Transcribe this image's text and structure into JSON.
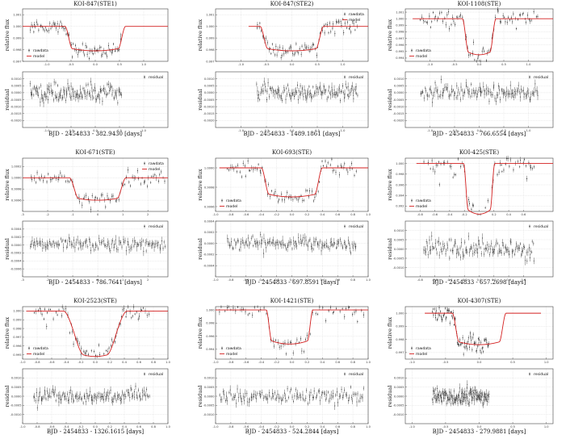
{
  "figure": {
    "layout": "3x3 grid of transit light-curve panels, each with a relative-flux plot above a residual plot",
    "colors": {
      "data": "#1a1a1a",
      "model": "#d42020",
      "grid": "#cfcfcf",
      "frame": "#444444"
    }
  },
  "chart_data": [
    {
      "type": "scatter",
      "title": "KOI-847(STE1)",
      "xlabel": "BJD - 2454833 - 382.9430 [days]",
      "ylabel_top": "relative flux",
      "ylabel_bottom": "residual",
      "xlim": [
        -1.5,
        1.5
      ],
      "xticks": [
        "-1.0",
        "-0.5",
        "0.0",
        "0.5",
        "1.0"
      ],
      "top": {
        "ylim": [
          0.997,
          1.0015
        ],
        "yticks": [
          "1.001",
          "1.000",
          "0.999",
          "0.998",
          "0.997"
        ],
        "legend": "lower-left",
        "legend_entries": [
          "rawdata",
          "model"
        ]
      },
      "bottom": {
        "ylim": [
          -0.0025,
          0.0015
        ],
        "yticks": [
          "0.0010",
          "0.0005",
          "0.0000",
          "-0.0005",
          "-0.0010",
          "-0.0015",
          "-0.0020"
        ],
        "legend": "upper-right",
        "legend_entries": [
          "residual"
        ]
      },
      "model": {
        "depth": 0.0021,
        "t_ingress": -0.55,
        "t_egress": 0.55,
        "edge": 0.15
      },
      "data_range": [
        -1.35,
        0.55
      ],
      "residual_scatter": 0.0006
    },
    {
      "type": "scatter",
      "title": "KOI-847(STE2)",
      "xlabel": "BJD - 2454833 - 1489.1861 [days]",
      "ylabel_top": "relative flux",
      "ylabel_bottom": "residual",
      "xlim": [
        -1.5,
        1.5
      ],
      "xticks": [
        "-1.0",
        "-0.5",
        "0.0",
        "0.5",
        "1.0"
      ],
      "top": {
        "ylim": [
          0.997,
          1.0015
        ],
        "yticks": [
          "1.001",
          "1.000",
          "0.999",
          "0.998",
          "0.997"
        ],
        "legend": "upper-right",
        "legend_entries": [
          "rawdata",
          "model"
        ]
      },
      "bottom": {
        "ylim": [
          -0.0025,
          0.0015
        ],
        "yticks": [
          "0.0010",
          "0.0005",
          "0.0000",
          "-0.0005",
          "-0.0010",
          "-0.0015",
          "-0.0020"
        ],
        "legend": "upper-right",
        "legend_entries": [
          "residual"
        ]
      },
      "model": {
        "depth": 0.0021,
        "t_ingress": -0.55,
        "t_egress": 0.55,
        "edge": 0.15
      },
      "data_range": [
        -0.7,
        1.3
      ],
      "residual_scatter": 0.0006
    },
    {
      "type": "scatter",
      "title": "KOI-1108(STE)",
      "xlabel": "BJD - 2454833 - 766.6554 [days]",
      "ylabel_top": "relative flux",
      "ylabel_bottom": "residual",
      "xlim": [
        -1.5,
        1.5
      ],
      "xticks": [
        "-1.0",
        "-0.5",
        "0.0",
        "0.5",
        "1.0"
      ],
      "top": {
        "ylim": [
          0.9935,
          1.0015
        ],
        "yticks": [
          "1.001",
          "1.000",
          "0.999",
          "0.998",
          "0.997",
          "0.996",
          "0.995",
          "0.994"
        ],
        "legend": "lower-left",
        "legend_entries": [
          "rawdata",
          "model"
        ]
      },
      "bottom": {
        "ylim": [
          -0.0025,
          0.0015
        ],
        "yticks": [
          "0.0010",
          "0.0005",
          "0.0000",
          "-0.0005",
          "-0.0010",
          "-0.0015",
          "-0.0020"
        ],
        "legend": "upper-right",
        "legend_entries": [
          "residual"
        ]
      },
      "model": {
        "depth": 0.0055,
        "t_ingress": -0.28,
        "t_egress": 0.28,
        "edge": 0.12
      },
      "data_range": [
        -1.2,
        1.2
      ],
      "residual_scatter": 0.0006
    },
    {
      "type": "scatter",
      "title": "KOI-671(STE)",
      "xlabel": "BJD - 2454833 - 786.7641 [days]",
      "ylabel_top": "relative flux",
      "ylabel_bottom": "residual",
      "xlim": [
        -3.0,
        2.8
      ],
      "xticks": [
        "-3",
        "-2",
        "-1",
        "0",
        "1",
        "2"
      ],
      "top": {
        "ylim": [
          0.9994,
          1.00035
        ],
        "yticks": [
          "1.0002",
          "1.0000",
          "0.9998",
          "0.9996"
        ],
        "legend": "upper-right",
        "legend_entries": [
          "rawdata",
          "model"
        ]
      },
      "bottom": {
        "ylim": [
          -0.0008,
          0.0006
        ],
        "yticks": [
          "0.0004",
          "0.0002",
          "0.0000",
          "-0.0002",
          "-0.0004",
          "-0.0006"
        ],
        "legend": "upper-right",
        "legend_entries": [
          "residual"
        ]
      },
      "model": {
        "depth": 0.0004,
        "t_ingress": -0.95,
        "t_egress": 0.95,
        "edge": 0.35
      },
      "data_range": [
        -2.7,
        2.7
      ],
      "residual_scatter": 0.00015
    },
    {
      "type": "scatter",
      "title": "KOI-693(STE)",
      "xlabel": "BJD - 2454833 - 697.8591 [days]",
      "ylabel_top": "relative flux",
      "ylabel_bottom": "residual",
      "xlim": [
        -1.0,
        1.0
      ],
      "xticks": [
        "-1.0",
        "-0.8",
        "-0.6",
        "-0.4",
        "-0.2",
        "0.0",
        "0.2",
        "0.4",
        "0.6",
        "0.8",
        "1.0"
      ],
      "top": {
        "ylim": [
          0.99955,
          1.0001
        ],
        "yticks": [
          "1.0000",
          "0.9998",
          "0.9996"
        ],
        "legend": "lower-left",
        "legend_entries": [
          "rawdata",
          "model"
        ]
      },
      "bottom": {
        "ylim": [
          -0.0006,
          0.0004
        ],
        "yticks": [
          "0.0004",
          "0.0002",
          "0.0000",
          "-0.0002",
          "-0.0004"
        ],
        "legend": "upper-right",
        "legend_entries": [
          "residual"
        ]
      },
      "model": {
        "depth": 0.0003,
        "t_ingress": -0.35,
        "t_egress": 0.35,
        "edge": 0.1
      },
      "data_range": [
        -0.85,
        0.85
      ],
      "residual_scatter": 0.00012
    },
    {
      "type": "scatter",
      "title": "KOI-425(STE)",
      "xlabel": "BJD - 2454833 - 657.2698 [days]",
      "ylabel_top": "relative flux",
      "ylabel_bottom": "residual",
      "xlim": [
        -1.0,
        1.0
      ],
      "xticks": [
        "-0.8",
        "-0.6",
        "-0.4",
        "-0.2",
        "0.0",
        "0.2",
        "0.4",
        "0.6"
      ],
      "top": {
        "ylim": [
          0.991,
          1.001
        ],
        "yticks": [
          "1.000",
          "0.998",
          "0.996",
          "0.994",
          "0.992"
        ],
        "legend": "lower-left",
        "legend_entries": [
          "rawdata",
          "model"
        ]
      },
      "bottom": {
        "ylim": [
          -0.0015,
          0.0015
        ],
        "yticks": [
          "0.0010",
          "0.0005",
          "0.0000",
          "-0.0005",
          "-0.0010"
        ],
        "legend": "upper-right",
        "legend_entries": [
          "residual"
        ]
      },
      "model": {
        "depth": 0.0095,
        "t_ingress": -0.18,
        "t_egress": 0.18,
        "edge": 0.06
      },
      "data_range": [
        -0.75,
        0.75
      ],
      "residual_scatter": 0.0005
    },
    {
      "type": "scatter",
      "title": "KOI-2523(STE)",
      "xlabel": "BJD - 2454833 - 1326.1615 [days]",
      "ylabel_top": "relative flux",
      "ylabel_bottom": "residual",
      "xlim": [
        -1.0,
        1.0
      ],
      "xticks": [
        "-1.0",
        "-0.8",
        "-0.6",
        "-0.4",
        "-0.2",
        "0.0",
        "0.2",
        "0.4",
        "0.6",
        "0.8",
        "1.0"
      ],
      "top": {
        "ylim": [
          0.9945,
          1.0005
        ],
        "yticks": [
          "1.000",
          "0.999",
          "0.998",
          "0.997",
          "0.996",
          "0.995"
        ],
        "legend": "lower-left",
        "legend_entries": [
          "rawdata",
          "model"
        ]
      },
      "bottom": {
        "ylim": [
          -0.0015,
          0.0015
        ],
        "yticks": [
          "0.0010",
          "0.0005",
          "0.0000",
          "-0.0005",
          "-0.0010"
        ],
        "legend": "upper-right",
        "legend_entries": [
          "residual"
        ]
      },
      "model": {
        "depth": 0.0052,
        "t_ingress": -0.3,
        "t_egress": 0.3,
        "edge": 0.28
      },
      "data_range": [
        -0.85,
        0.75
      ],
      "residual_scatter": 0.0004
    },
    {
      "type": "scatter",
      "title": "KOI-1421(STE)",
      "xlabel": "BJD - 2454833 - 524.2844 [days]",
      "ylabel_top": "relative flux",
      "ylabel_bottom": "residual",
      "xlim": [
        -1.0,
        1.0
      ],
      "xticks": [
        "-1.0",
        "-0.8",
        "-0.6",
        "-0.4",
        "-0.2",
        "0.0",
        "0.2",
        "0.4",
        "0.6",
        "0.8",
        "1.0"
      ],
      "top": {
        "ylim": [
          0.9925,
          1.0005
        ],
        "yticks": [
          "1.000",
          "0.998",
          "0.996",
          "0.994"
        ],
        "legend": "lower-left",
        "legend_entries": [
          "rawdata",
          "model"
        ]
      },
      "bottom": {
        "ylim": [
          -0.0015,
          0.0015
        ],
        "yticks": [
          "0.0010",
          "0.0005",
          "0.0000",
          "-0.0005",
          "-0.0010"
        ],
        "legend": "upper-right",
        "legend_entries": [
          "residual"
        ]
      },
      "model": {
        "depth": 0.0052,
        "t_ingress": -0.3,
        "t_egress": 0.24,
        "edge": 0.07
      },
      "data_range": [
        -0.95,
        0.95
      ],
      "residual_scatter": 0.0004
    },
    {
      "type": "scatter",
      "title": "KOI-4307(STE)",
      "xlabel": "BJD - 2454833 - 279.9881 [days]",
      "ylabel_top": "relative flux",
      "ylabel_bottom": "residual",
      "xlim": [
        -1.1,
        1.1
      ],
      "xticks": [
        "-1.0",
        "-0.5",
        "0.0",
        "0.5",
        "1.0"
      ],
      "top": {
        "ylim": [
          0.9965,
          1.0005
        ],
        "yticks": [
          "1.000",
          "0.999",
          "0.998",
          "0.997"
        ],
        "legend": "lower-left",
        "legend_entries": [
          "rawdata",
          "model"
        ]
      },
      "bottom": {
        "ylim": [
          -0.0015,
          0.0015
        ],
        "yticks": [
          "0.0010",
          "0.0005",
          "0.0000",
          "-0.0005",
          "-0.0010"
        ],
        "legend": "upper-right",
        "legend_entries": [
          "residual"
        ]
      },
      "model": {
        "depth": 0.0024,
        "t_ingress": -0.35,
        "t_egress": 0.35,
        "edge": 0.1
      },
      "data_range": [
        -0.7,
        0.15
      ],
      "residual_scatter": 0.0005
    }
  ]
}
